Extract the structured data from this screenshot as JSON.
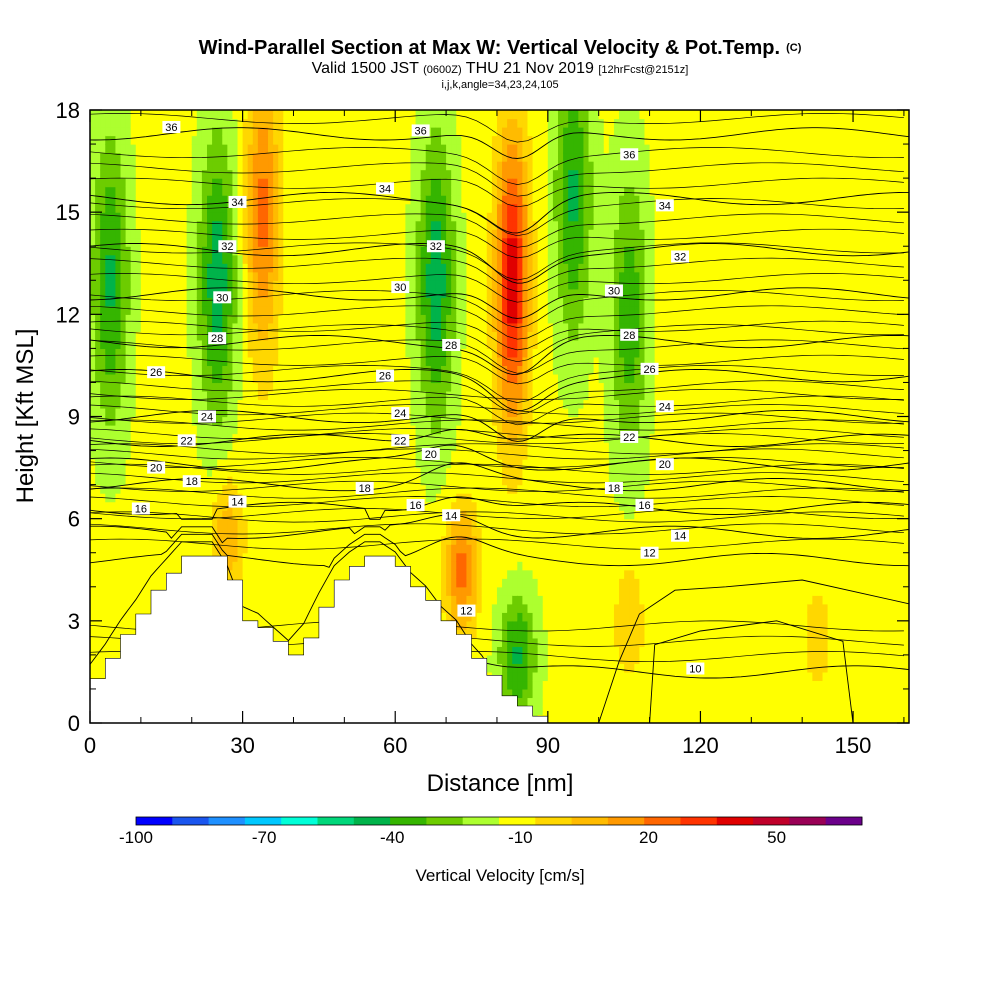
{
  "title": {
    "main": "Wind-Parallel Section at Max W: Vertical Velocity & Pot.Temp.",
    "copyright": "(C)",
    "valid_prefix": "Valid 1500 JST",
    "valid_zulu": "(0600Z)",
    "valid_date": "THU 21 Nov 2019",
    "forecast": "[12hrFcst@2151z]",
    "indices": "i,j,k,angle=34,23,24,105"
  },
  "colors": {
    "levels": [
      "#0000ff",
      "#1a55ee",
      "#1e90ff",
      "#00c8ff",
      "#00ffd8",
      "#00d77a",
      "#00b34a",
      "#35b500",
      "#6dcc00",
      "#adff2f",
      "#ffff00",
      "#ffd700",
      "#ffbb00",
      "#ff9900",
      "#ff6600",
      "#ff3300",
      "#e00000",
      "#c0002a",
      "#990055",
      "#6b008a"
    ],
    "contour": "#000000",
    "terrain": "#ffffff"
  },
  "chart_data": {
    "type": "heatmap",
    "xlabel": "Distance [nm]",
    "ylabel": "Height [Kft MSL]",
    "xlim": [
      0,
      161
    ],
    "ylim": [
      0,
      18
    ],
    "x_ticks": [
      0,
      30,
      60,
      90,
      120,
      150
    ],
    "y_ticks": [
      0,
      3,
      6,
      9,
      12,
      15,
      18
    ],
    "colorbar": {
      "label": "Vertical Velocity [cm/s]",
      "tick_labels": [
        "-100",
        "-70",
        "-40",
        "-10",
        "20",
        "50"
      ],
      "tick_values": [
        -100,
        -70,
        -40,
        -10,
        20,
        50
      ],
      "bounds": [
        -100,
        70
      ],
      "step": 10
    },
    "vertical_velocity_features": [
      {
        "x": 83,
        "center_height": 13,
        "peak": 65,
        "sign": "updraft"
      },
      {
        "x": 73,
        "center_height": 4.5,
        "peak": 40,
        "sign": "updraft"
      },
      {
        "x": 34,
        "center_height": 15,
        "peak": 40,
        "sign": "updraft"
      },
      {
        "x": 27,
        "center_height": 5.5,
        "peak": 25,
        "sign": "updraft"
      },
      {
        "x": 4,
        "center_height": 13,
        "peak": -35,
        "sign": "downdraft"
      },
      {
        "x": 25,
        "center_height": 13,
        "peak": -40,
        "sign": "downdraft"
      },
      {
        "x": 68,
        "center_height": 13,
        "peak": -40,
        "sign": "downdraft"
      },
      {
        "x": 95,
        "center_height": 15.5,
        "peak": -35,
        "sign": "downdraft"
      },
      {
        "x": 106,
        "center_height": 12,
        "peak": -30,
        "sign": "downdraft"
      },
      {
        "x": 84,
        "center_height": 2,
        "peak": -35,
        "sign": "downdraft"
      },
      {
        "x": 106,
        "center_height": 3,
        "peak": 15,
        "sign": "updraft"
      },
      {
        "x": 143,
        "center_height": 2.5,
        "peak": 12,
        "sign": "updraft"
      }
    ],
    "terrain_profile": {
      "x": [
        0,
        3,
        6,
        9,
        12,
        15,
        18,
        21,
        24,
        27,
        30,
        33,
        36,
        39,
        42,
        45,
        48,
        51,
        54,
        57,
        60,
        63,
        66,
        69,
        72,
        75,
        78,
        81,
        84,
        87,
        90,
        161
      ],
      "height": [
        1.3,
        1.9,
        2.6,
        3.2,
        3.9,
        4.4,
        4.9,
        4.9,
        4.9,
        4.2,
        3.0,
        2.8,
        2.4,
        2.0,
        2.5,
        3.4,
        4.2,
        4.6,
        4.9,
        4.9,
        4.6,
        4.0,
        3.6,
        3.0,
        2.6,
        1.9,
        1.4,
        0.8,
        0.5,
        0.2,
        0,
        0
      ]
    },
    "theta_contours": {
      "levels": [
        10,
        12,
        14,
        16,
        18,
        20,
        22,
        24,
        26,
        28,
        30,
        32,
        34,
        36
      ],
      "labels": [
        {
          "text": "36",
          "x": 16,
          "y": 17.5
        },
        {
          "text": "34",
          "x": 29,
          "y": 15.3
        },
        {
          "text": "32",
          "x": 27,
          "y": 14.0
        },
        {
          "text": "30",
          "x": 26,
          "y": 12.5
        },
        {
          "text": "28",
          "x": 25,
          "y": 11.3
        },
        {
          "text": "26",
          "x": 13,
          "y": 10.3
        },
        {
          "text": "24",
          "x": 23,
          "y": 9.0
        },
        {
          "text": "22",
          "x": 19,
          "y": 8.3
        },
        {
          "text": "20",
          "x": 13,
          "y": 7.5
        },
        {
          "text": "18",
          "x": 20,
          "y": 7.1
        },
        {
          "text": "16",
          "x": 10,
          "y": 6.3
        },
        {
          "text": "14",
          "x": 29,
          "y": 6.5
        },
        {
          "text": "36",
          "x": 65,
          "y": 17.4
        },
        {
          "text": "34",
          "x": 58,
          "y": 15.7
        },
        {
          "text": "32",
          "x": 68,
          "y": 14.0
        },
        {
          "text": "30",
          "x": 61,
          "y": 12.8
        },
        {
          "text": "28",
          "x": 71,
          "y": 11.1
        },
        {
          "text": "26",
          "x": 58,
          "y": 10.2
        },
        {
          "text": "24",
          "x": 61,
          "y": 9.1
        },
        {
          "text": "22",
          "x": 61,
          "y": 8.3
        },
        {
          "text": "20",
          "x": 67,
          "y": 7.9
        },
        {
          "text": "18",
          "x": 54,
          "y": 6.9
        },
        {
          "text": "16",
          "x": 64,
          "y": 6.4
        },
        {
          "text": "14",
          "x": 71,
          "y": 6.1
        },
        {
          "text": "12",
          "x": 74,
          "y": 3.3
        },
        {
          "text": "36",
          "x": 106,
          "y": 16.7
        },
        {
          "text": "34",
          "x": 113,
          "y": 15.2
        },
        {
          "text": "32",
          "x": 116,
          "y": 13.7
        },
        {
          "text": "30",
          "x": 103,
          "y": 12.7
        },
        {
          "text": "28",
          "x": 106,
          "y": 11.4
        },
        {
          "text": "26",
          "x": 110,
          "y": 10.4
        },
        {
          "text": "24",
          "x": 113,
          "y": 9.3
        },
        {
          "text": "22",
          "x": 106,
          "y": 8.4
        },
        {
          "text": "20",
          "x": 113,
          "y": 7.6
        },
        {
          "text": "18",
          "x": 103,
          "y": 6.9
        },
        {
          "text": "16",
          "x": 109,
          "y": 6.4
        },
        {
          "text": "14",
          "x": 116,
          "y": 5.5
        },
        {
          "text": "12",
          "x": 110,
          "y": 5.0
        },
        {
          "text": "10",
          "x": 119,
          "y": 1.6
        }
      ]
    }
  }
}
